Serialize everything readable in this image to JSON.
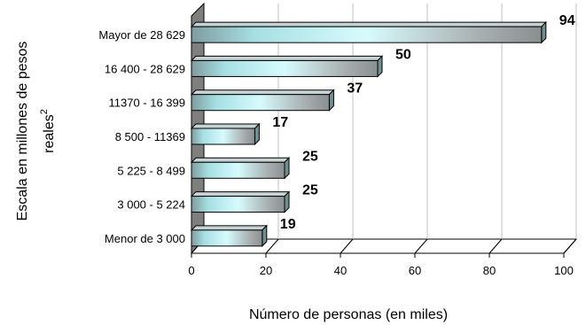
{
  "chart_data": {
    "type": "bar",
    "orientation": "horizontal",
    "categories": [
      "Mayor de 28 629",
      "16 400 - 28 629",
      "11370 - 16 399",
      "8 500 - 11369",
      "5 225 - 8 499",
      "3 000 - 5 224",
      "Menor de 3 000"
    ],
    "values": [
      94,
      50,
      37,
      17,
      25,
      25,
      19
    ],
    "data_labels": [
      "94",
      "50",
      "37",
      "17",
      "25",
      "25",
      "19"
    ],
    "xlabel": "Número de personas (en miles)",
    "ylabel_line1": "Escala en millones de pesos",
    "ylabel_line2": "reales",
    "ylabel_superscript": "2",
    "xlim": [
      0,
      100
    ],
    "xticks": [
      "0",
      "20",
      "40",
      "60",
      "80",
      "100"
    ],
    "grid": "vertical",
    "style": "3d",
    "colors": {
      "bar_edge": "#9fe6ea",
      "bar_center": "#b8bcbc",
      "wall": "#7f7f7f",
      "grid": "#c0c0c0"
    }
  }
}
